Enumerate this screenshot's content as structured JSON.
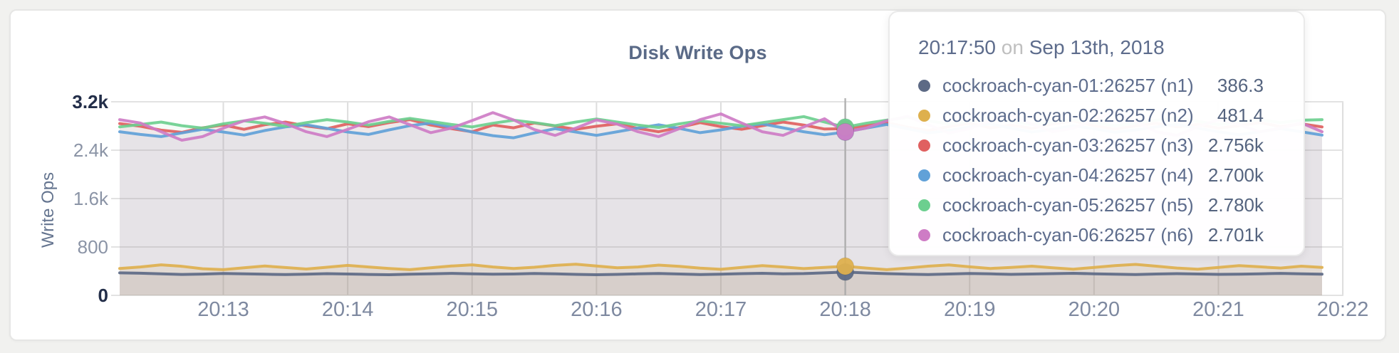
{
  "card": {
    "background": "#ffffff"
  },
  "chart_data": {
    "type": "line",
    "title": "Disk Write Ops",
    "ylabel": "Write Ops",
    "xlabel": "",
    "ylim": [
      0,
      3200
    ],
    "grid": true,
    "legend_position": "tooltip-only",
    "y_ticks": [
      {
        "label": "3.2k",
        "value": 3200,
        "emphasis": true
      },
      {
        "label": "2.4k",
        "value": 2400,
        "emphasis": false
      },
      {
        "label": "1.6k",
        "value": 1600,
        "emphasis": false
      },
      {
        "label": "800",
        "value": 800,
        "emphasis": false
      },
      {
        "label": "0",
        "value": 0,
        "emphasis": true
      }
    ],
    "x_ticks": [
      {
        "label": "20:13",
        "sec": 50
      },
      {
        "label": "20:14",
        "sec": 110
      },
      {
        "label": "20:15",
        "sec": 170
      },
      {
        "label": "20:16",
        "sec": 230
      },
      {
        "label": "20:17",
        "sec": 290
      },
      {
        "label": "20:18",
        "sec": 350
      },
      {
        "label": "20:19",
        "sec": 410
      },
      {
        "label": "20:20",
        "sec": 470
      },
      {
        "label": "20:21",
        "sec": 530
      },
      {
        "label": "20:22",
        "sec": 590
      }
    ],
    "x_start_time": "20:12:10",
    "x_end_time": "20:21:50",
    "x_interval_seconds": 10,
    "x_domain_seconds": 580,
    "series": [
      {
        "name": "cockroach-cyan-01:26257 (n1)",
        "short": "n1",
        "color": "#5d6a85",
        "fill_opacity": 0.1,
        "values": [
          372,
          366,
          356,
          346,
          352,
          362,
          356,
          349,
          343,
          351,
          359,
          353,
          346,
          341,
          349,
          357,
          363,
          356,
          349,
          353,
          361,
          355,
          347,
          341,
          347,
          355,
          361,
          353,
          345,
          351,
          359,
          365,
          357,
          360,
          372,
          386.3,
          371,
          359,
          351,
          345,
          353,
          361,
          355,
          347,
          353,
          359,
          365,
          357,
          349,
          345,
          353,
          359,
          353,
          347,
          351,
          357,
          363,
          357,
          351
        ]
      },
      {
        "name": "cockroach-cyan-02:26257 (n2)",
        "short": "n2",
        "color": "#deb04e",
        "fill_opacity": 0.15,
        "values": [
          445,
          470,
          505,
          480,
          440,
          425,
          455,
          485,
          460,
          435,
          465,
          495,
          470,
          445,
          425,
          455,
          485,
          505,
          470,
          445,
          465,
          495,
          515,
          485,
          455,
          470,
          500,
          480,
          450,
          430,
          462,
          492,
          470,
          442,
          462,
          481.4,
          452,
          425,
          452,
          482,
          502,
          472,
          445,
          462,
          482,
          455,
          432,
          462,
          492,
          512,
          482,
          452,
          432,
          462,
          492,
          472,
          452,
          482,
          462
        ]
      },
      {
        "name": "cockroach-cyan-03:26257 (n3)",
        "short": "n3",
        "color": "#e06060",
        "fill_opacity": 0.07,
        "values": [
          2840,
          2795,
          2730,
          2695,
          2770,
          2815,
          2745,
          2820,
          2865,
          2800,
          2755,
          2835,
          2790,
          2855,
          2905,
          2815,
          2755,
          2705,
          2815,
          2770,
          2850,
          2800,
          2745,
          2795,
          2835,
          2760,
          2705,
          2775,
          2855,
          2790,
          2745,
          2805,
          2865,
          2815,
          2750,
          2756,
          2805,
          2855,
          2780,
          2725,
          2790,
          2845,
          2770,
          2815,
          2760,
          2835,
          2885,
          2805,
          2750,
          2800,
          2845,
          2785,
          2825,
          2765,
          2805,
          2855,
          2790,
          2835,
          2785
        ]
      },
      {
        "name": "cockroach-cyan-04:26257 (n4)",
        "short": "n4",
        "color": "#61a1d8",
        "fill_opacity": 0.07,
        "values": [
          2705,
          2660,
          2625,
          2685,
          2745,
          2700,
          2650,
          2725,
          2785,
          2820,
          2760,
          2700,
          2660,
          2735,
          2805,
          2850,
          2780,
          2700,
          2640,
          2605,
          2685,
          2755,
          2700,
          2645,
          2705,
          2765,
          2820,
          2760,
          2690,
          2735,
          2795,
          2835,
          2770,
          2705,
          2655,
          2700,
          2765,
          2825,
          2755,
          2685,
          2725,
          2785,
          2835,
          2765,
          2700,
          2745,
          2805,
          2755,
          2695,
          2735,
          2785,
          2825,
          2765,
          2705,
          2655,
          2705,
          2755,
          2705,
          2650
        ]
      },
      {
        "name": "cockroach-cyan-05:26257 (n5)",
        "short": "n5",
        "color": "#6ccf8f",
        "fill_opacity": 0.07,
        "values": [
          2785,
          2825,
          2865,
          2805,
          2765,
          2835,
          2885,
          2845,
          2795,
          2855,
          2905,
          2865,
          2815,
          2875,
          2925,
          2875,
          2825,
          2785,
          2845,
          2895,
          2855,
          2805,
          2865,
          2915,
          2865,
          2815,
          2775,
          2835,
          2885,
          2845,
          2805,
          2855,
          2905,
          2955,
          2865,
          2780,
          2845,
          2895,
          2945,
          2885,
          2835,
          2875,
          2925,
          2875,
          2825,
          2865,
          2905,
          2855,
          2805,
          2845,
          2895,
          2935,
          2875,
          2825,
          2865,
          2905,
          2855,
          2895,
          2905
        ]
      },
      {
        "name": "cockroach-cyan-06:26257 (n6)",
        "short": "n6",
        "color": "#ce7cc5",
        "fill_opacity": 0.07,
        "values": [
          2905,
          2850,
          2705,
          2565,
          2625,
          2765,
          2885,
          2950,
          2840,
          2705,
          2625,
          2745,
          2870,
          2950,
          2820,
          2690,
          2765,
          2890,
          3020,
          2900,
          2740,
          2645,
          2765,
          2900,
          2830,
          2705,
          2625,
          2755,
          2905,
          3000,
          2850,
          2705,
          2645,
          2785,
          2920,
          2701,
          2765,
          2885,
          2960,
          2820,
          2685,
          2755,
          2890,
          2970,
          2830,
          2705,
          2765,
          2900,
          3040,
          2870,
          2705,
          2645,
          2785,
          2905,
          2820,
          2705,
          2765,
          2850,
          2705
        ]
      }
    ],
    "hover": {
      "index": 35,
      "time": "20:17:50",
      "date_connector": "on",
      "date": "Sep 13th, 2018",
      "rows": [
        {
          "label": "cockroach-cyan-01:26257 (n1)",
          "value": "386.3"
        },
        {
          "label": "cockroach-cyan-02:26257 (n2)",
          "value": "481.4"
        },
        {
          "label": "cockroach-cyan-03:26257 (n3)",
          "value": "2.756k"
        },
        {
          "label": "cockroach-cyan-04:26257 (n4)",
          "value": "2.700k"
        },
        {
          "label": "cockroach-cyan-05:26257 (n5)",
          "value": "2.780k"
        },
        {
          "label": "cockroach-cyan-06:26257 (n6)",
          "value": "2.701k"
        }
      ]
    }
  }
}
